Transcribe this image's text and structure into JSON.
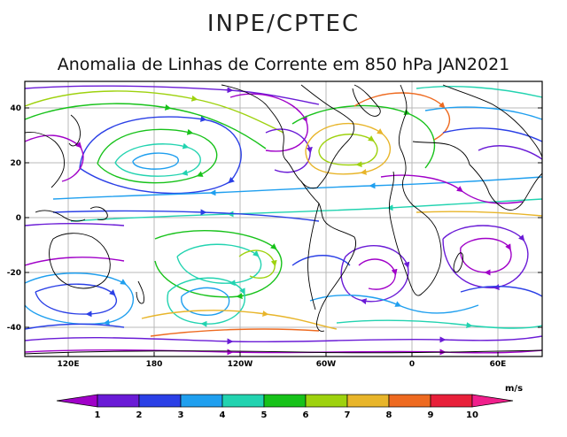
{
  "header": {
    "org": "INPE/CPTEC",
    "title": "Anomalia de Linhas de Corrente em 850 hPa JAN2021"
  },
  "map": {
    "lat_ticks": [
      "40",
      "20",
      "0",
      "-20",
      "-40"
    ],
    "lon_ticks": [
      "120E",
      "180",
      "120W",
      "60W",
      "0",
      "60E"
    ]
  },
  "colorbar": {
    "unit": "m/s",
    "labels": [
      "1",
      "2",
      "3",
      "4",
      "5",
      "6",
      "7",
      "8",
      "9",
      "10"
    ],
    "colors": [
      "#a000c8",
      "#6a1bd6",
      "#2b40e6",
      "#1f9fef",
      "#22d3b0",
      "#17c21a",
      "#9ed20e",
      "#e8b52a",
      "#ee6a20",
      "#e8203a",
      "#f0208c"
    ]
  }
}
